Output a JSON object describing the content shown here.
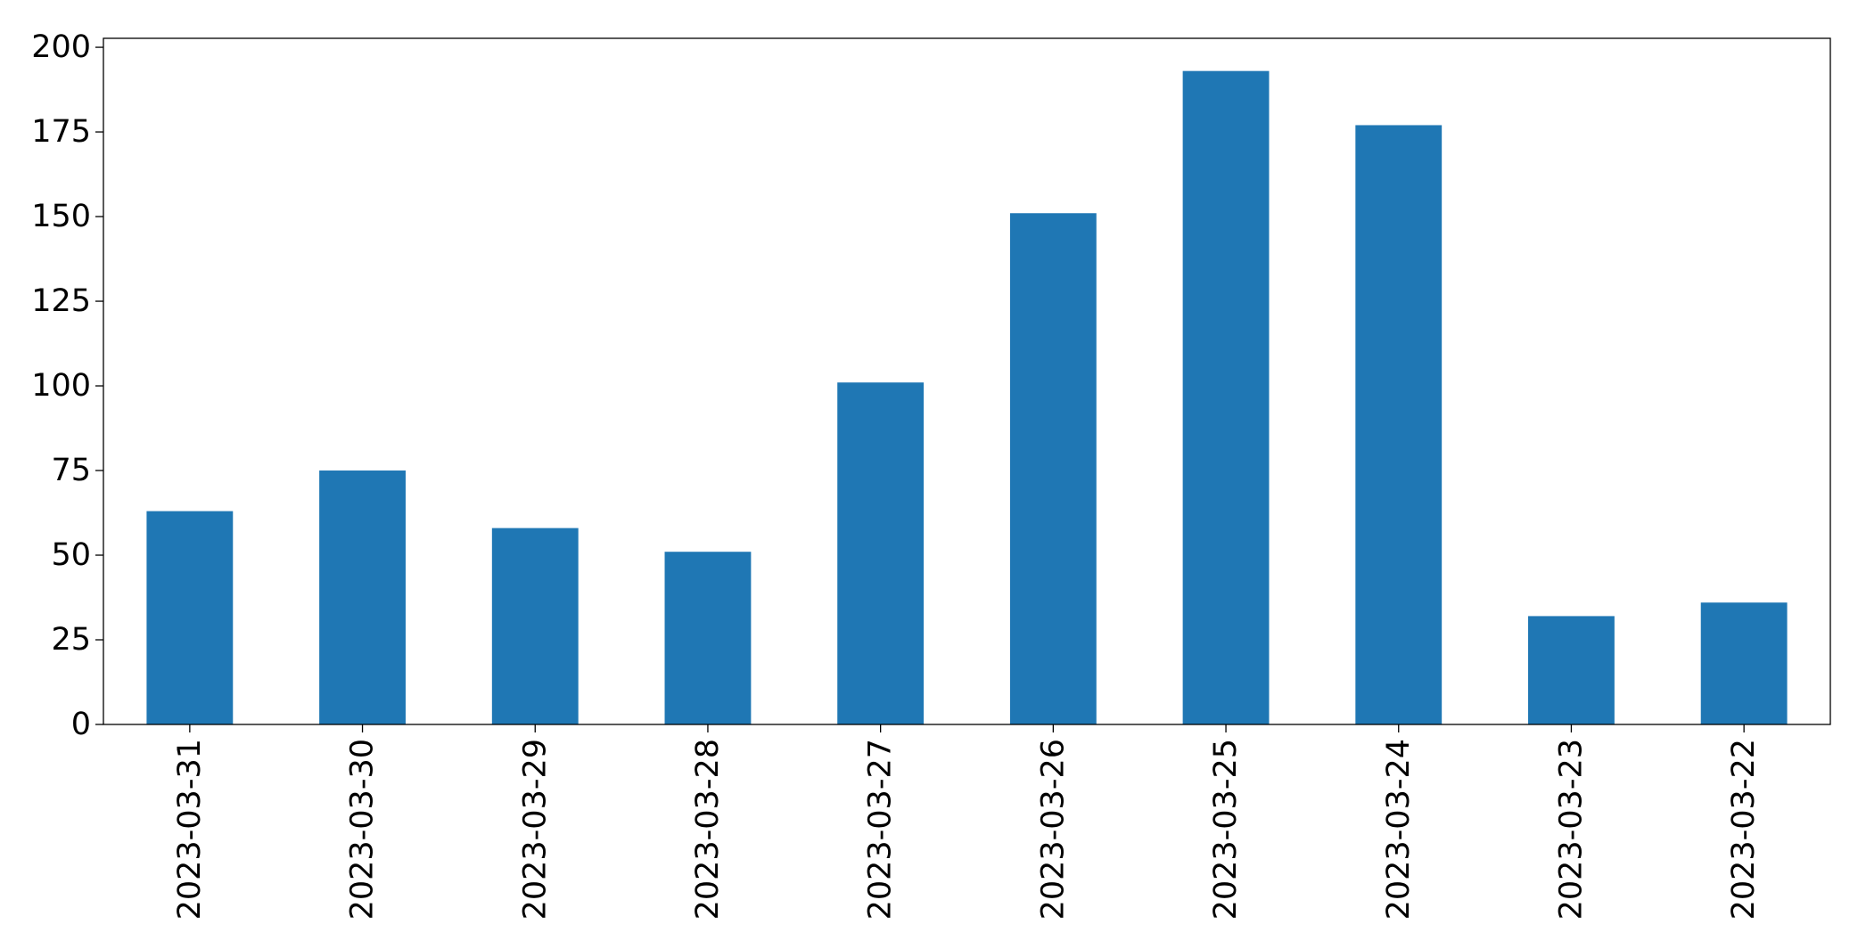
{
  "chart_data": {
    "type": "bar",
    "categories": [
      "2023-03-31",
      "2023-03-30",
      "2023-03-29",
      "2023-03-28",
      "2023-03-27",
      "2023-03-26",
      "2023-03-25",
      "2023-03-24",
      "2023-03-23",
      "2023-03-22"
    ],
    "values": [
      63,
      75,
      58,
      51,
      101,
      151,
      193,
      177,
      32,
      36
    ],
    "color": "#1f77b4",
    "ylim": [
      0,
      202.65
    ],
    "yticks": [
      0,
      25,
      50,
      75,
      100,
      125,
      150,
      175,
      200
    ],
    "grid": false
  }
}
